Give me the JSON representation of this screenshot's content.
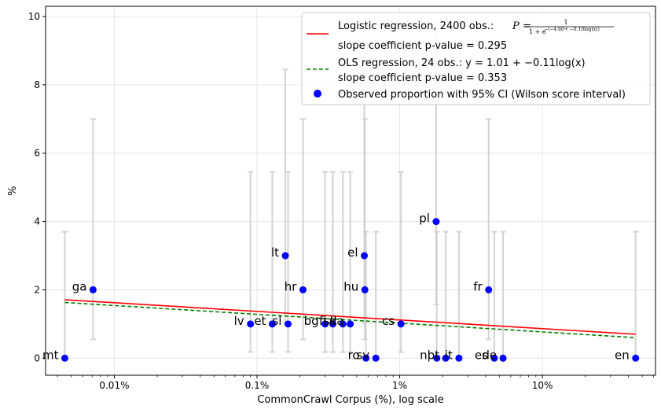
{
  "chart_data": {
    "type": "scatter",
    "title": "",
    "xlabel": "CommonCrawl Corpus (%), log scale",
    "ylabel": "%",
    "xscale": "log",
    "xlim": [
      0.0033,
      62
    ],
    "ylim": [
      -0.5,
      10.3
    ],
    "grid": true,
    "x_ticks": [
      {
        "value": 0.01,
        "label": "0.01%"
      },
      {
        "value": 0.1,
        "label": "0.1%"
      },
      {
        "value": 1,
        "label": "1%"
      },
      {
        "value": 10,
        "label": "10%"
      }
    ],
    "y_ticks": [
      {
        "value": 0,
        "label": "0"
      },
      {
        "value": 2,
        "label": "2"
      },
      {
        "value": 4,
        "label": "4"
      },
      {
        "value": 6,
        "label": "6"
      },
      {
        "value": 8,
        "label": "8"
      },
      {
        "value": 10,
        "label": "10"
      }
    ],
    "points": [
      {
        "label": "mt",
        "x": 0.0045,
        "y": 0,
        "ci": [
          0,
          3.7
        ]
      },
      {
        "label": "ga",
        "x": 0.0071,
        "y": 2,
        "ci": [
          0.55,
          7.0
        ]
      },
      {
        "label": "lv",
        "x": 0.09,
        "y": 1,
        "ci": [
          0.18,
          5.45
        ]
      },
      {
        "label": "et",
        "x": 0.128,
        "y": 1,
        "ci": [
          0.18,
          5.45
        ]
      },
      {
        "label": "lt",
        "x": 0.158,
        "y": 3,
        "ci": [
          1.03,
          8.45
        ]
      },
      {
        "label": "sl",
        "x": 0.165,
        "y": 1,
        "ci": [
          0.18,
          5.45
        ]
      },
      {
        "label": "hr",
        "x": 0.21,
        "y": 2,
        "ci": [
          0.55,
          7.0
        ]
      },
      {
        "label": "bg",
        "x": 0.3,
        "y": 1,
        "ci": [
          0.18,
          5.45
        ]
      },
      {
        "label": "fi",
        "x": 0.34,
        "y": 1,
        "ci": [
          0.18,
          5.45
        ]
      },
      {
        "label": "sk",
        "x": 0.4,
        "y": 1,
        "ci": [
          0.18,
          5.45
        ]
      },
      {
        "label": "da",
        "x": 0.45,
        "y": 1,
        "ci": [
          0.18,
          5.45
        ]
      },
      {
        "label": "el",
        "x": 0.565,
        "y": 3,
        "ci": [
          1.03,
          8.45
        ]
      },
      {
        "label": "hu",
        "x": 0.57,
        "y": 2,
        "ci": [
          0.55,
          7.0
        ]
      },
      {
        "label": "ro",
        "x": 0.58,
        "y": 0,
        "ci": [
          0,
          3.7
        ]
      },
      {
        "label": "sv",
        "x": 0.68,
        "y": 0,
        "ci": [
          0,
          3.7
        ]
      },
      {
        "label": "cs",
        "x": 1.02,
        "y": 1,
        "ci": [
          0.18,
          5.45
        ]
      },
      {
        "label": "pl",
        "x": 1.8,
        "y": 4,
        "ci": [
          1.57,
          9.85
        ]
      },
      {
        "label": "nl",
        "x": 1.82,
        "y": 0,
        "ci": [
          0,
          3.7
        ]
      },
      {
        "label": "pt",
        "x": 2.1,
        "y": 0,
        "ci": [
          0,
          3.7
        ]
      },
      {
        "label": "it",
        "x": 2.6,
        "y": 0,
        "ci": [
          0,
          3.7
        ]
      },
      {
        "label": "fr",
        "x": 4.2,
        "y": 2,
        "ci": [
          0.55,
          7.0
        ]
      },
      {
        "label": "es",
        "x": 4.6,
        "y": 0,
        "ci": [
          0,
          3.7
        ]
      },
      {
        "label": "de",
        "x": 5.3,
        "y": 0,
        "ci": [
          0,
          3.7
        ]
      },
      {
        "label": "en",
        "x": 45,
        "y": 0,
        "ci": [
          0,
          3.7
        ]
      }
    ],
    "lines": [
      {
        "name": "logistic",
        "color": "#ff0000",
        "dash": "solid",
        "x": [
          0.0045,
          45
        ],
        "y": [
          1.71,
          0.7
        ]
      },
      {
        "name": "ols",
        "color": "#008000",
        "dash": "dashed",
        "x": [
          0.0045,
          45
        ],
        "y": [
          1.63,
          0.6
        ]
      }
    ],
    "legend": {
      "position": "upper right",
      "logistic_line1_prefix": "Logistic regression, 2400 obs.:",
      "logistic_formula_lhs": "P",
      "logistic_formula_num": "1",
      "logistic_formula_den_base": "1 + e",
      "logistic_formula_den_exp": "−(−4.60+ −0.10log(x))",
      "logistic_line2": "slope coefficient p-value = 0.295",
      "ols_line1": "OLS regression, 24 obs.: y = 1.01 + −0.11log(x)",
      "ols_line2": "slope coefficient p-value = 0.353",
      "observed": "Observed proportion with 95% CI (Wilson score interval)"
    },
    "colors": {
      "points": "#0000ff",
      "errorbars": "#d3d3d3",
      "grid": "#e6e6e6",
      "logistic": "#ff0000",
      "ols": "#008000"
    }
  }
}
